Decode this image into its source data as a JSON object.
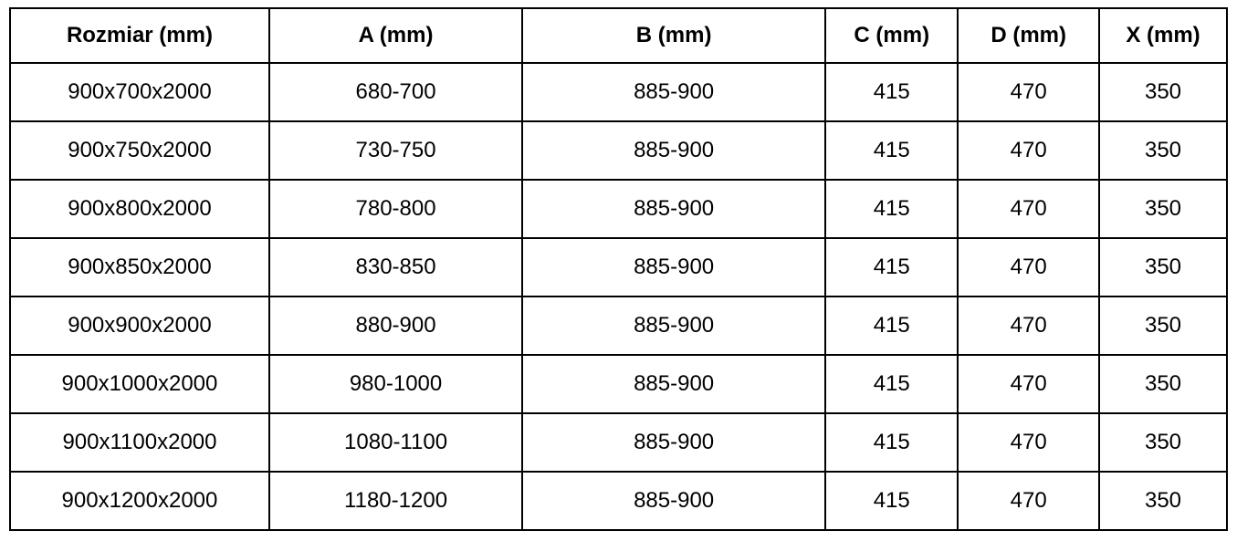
{
  "table": {
    "name": "shower-enclosure-dimensions-table",
    "headers": [
      "Rozmiar (mm)",
      "A (mm)",
      "B (mm)",
      "C (mm)",
      "D (mm)",
      "X (mm)"
    ],
    "rows": [
      [
        "900x700x2000",
        "680-700",
        "885-900",
        "415",
        "470",
        "350"
      ],
      [
        "900x750x2000",
        "730-750",
        "885-900",
        "415",
        "470",
        "350"
      ],
      [
        "900x800x2000",
        "780-800",
        "885-900",
        "415",
        "470",
        "350"
      ],
      [
        "900x850x2000",
        "830-850",
        "885-900",
        "415",
        "470",
        "350"
      ],
      [
        "900x900x2000",
        "880-900",
        "885-900",
        "415",
        "470",
        "350"
      ],
      [
        "900x1000x2000",
        "980-1000",
        "885-900",
        "415",
        "470",
        "350"
      ],
      [
        "900x1100x2000",
        "1080-1100",
        "885-900",
        "415",
        "470",
        "350"
      ],
      [
        "900x1200x2000",
        "1180-1200",
        "885-900",
        "415",
        "470",
        "350"
      ]
    ],
    "colors": {
      "border": "#000000",
      "text": "#000000",
      "background": "#ffffff"
    }
  }
}
